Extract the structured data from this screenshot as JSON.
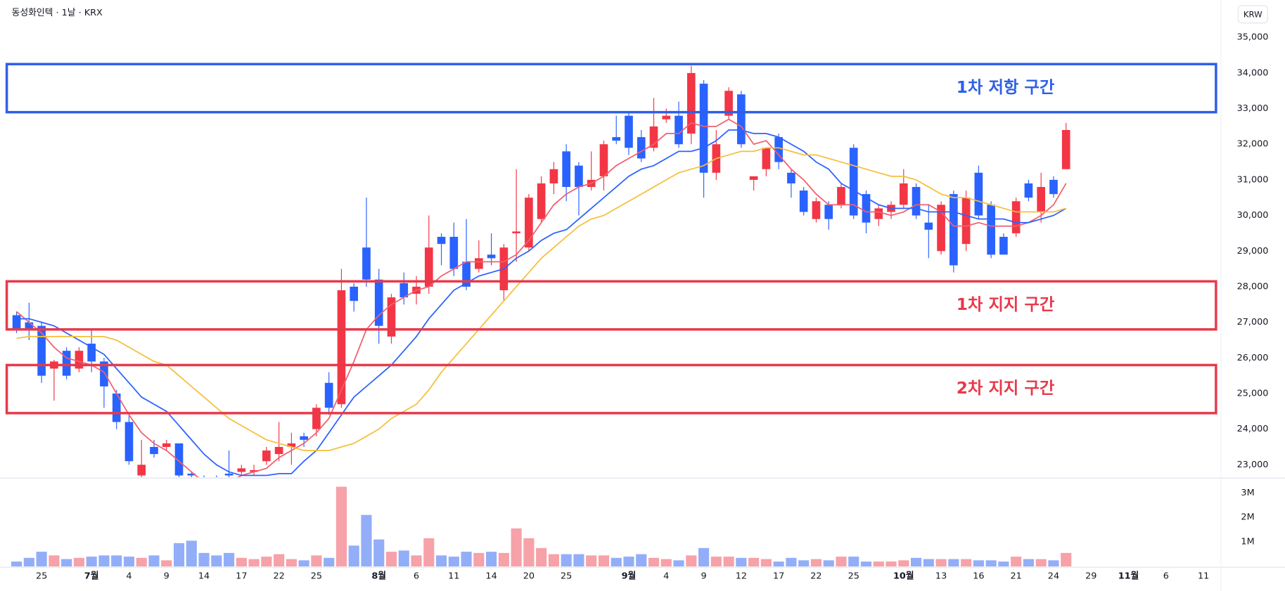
{
  "chart_data": [
    {
      "type": "candlestick",
      "title": "동성화인텍 · 1날 · KRX",
      "currency": "KRW",
      "categories": [
        null,
        null,
        "25",
        null,
        null,
        null,
        "7월",
        null,
        null,
        "4",
        null,
        null,
        "9",
        null,
        null,
        "14",
        null,
        null,
        "17",
        null,
        null,
        "22",
        null,
        null,
        "25",
        null,
        null,
        null,
        null,
        "8월",
        null,
        null,
        "6",
        null,
        null,
        "11",
        null,
        null,
        "14",
        null,
        null,
        "20",
        null,
        null,
        "25",
        null,
        null,
        null,
        null,
        "9월",
        null,
        null,
        "4",
        null,
        null,
        "9",
        null,
        null,
        "12",
        null,
        null,
        "17",
        null,
        null,
        "22",
        null,
        null,
        "25",
        null,
        null,
        null,
        "10월",
        null,
        null,
        "13",
        null,
        null,
        "16",
        null,
        null,
        "21",
        null,
        null,
        "24",
        null,
        null,
        "29",
        null,
        null,
        "11월",
        null,
        null,
        "6",
        null,
        null,
        "11",
        null
      ],
      "bold_categories": [
        "7월",
        "8월",
        "9월",
        "10월",
        "11월"
      ],
      "open": [
        27200,
        27000,
        26900,
        25700,
        26200,
        25700,
        26400,
        25900,
        25000,
        24200,
        22700,
        23500,
        23500,
        23600,
        22750,
        22600,
        22600,
        22750,
        22800,
        22800,
        23100,
        23300,
        23500,
        23800,
        24000,
        25300,
        24700,
        28000,
        29100,
        28200,
        26600,
        28100,
        27800,
        28000,
        29400,
        29400,
        28700,
        28500,
        28900,
        27900,
        29500,
        29100,
        29900,
        30900,
        31800,
        31400,
        30800,
        31100,
        32200,
        32800,
        32200,
        31900,
        32700,
        32800,
        32300,
        33700,
        31200,
        32800,
        33400,
        31000,
        31300,
        32200,
        31200,
        30700,
        29900,
        30300,
        30300,
        31900,
        30600,
        29900,
        30100,
        30300,
        30800,
        29800,
        29000,
        30600,
        29200,
        31200,
        30300,
        29400,
        29500,
        30900,
        30100,
        31000,
        31300,
        null,
        null,
        null,
        null,
        null,
        null,
        null,
        null,
        null,
        null,
        null,
        null
      ],
      "high": [
        27300,
        27550,
        27000,
        25950,
        26300,
        26300,
        26800,
        26000,
        25100,
        24400,
        23700,
        23700,
        23700,
        23600,
        22800,
        22700,
        22700,
        23400,
        23000,
        23000,
        23500,
        24200,
        23900,
        23900,
        24700,
        25600,
        28500,
        28100,
        30500,
        28500,
        27800,
        28400,
        28300,
        30000,
        29500,
        29800,
        29900,
        29300,
        29500,
        29200,
        31300,
        30600,
        31100,
        31500,
        32000,
        31500,
        31800,
        32100,
        32800,
        32900,
        32400,
        33300,
        33000,
        33200,
        34200,
        33800,
        32400,
        33600,
        33500,
        31100,
        31900,
        32300,
        31300,
        30800,
        30500,
        30400,
        30900,
        32000,
        30700,
        30300,
        30400,
        31300,
        30900,
        30300,
        30400,
        30700,
        30700,
        31400,
        30400,
        29500,
        30500,
        31000,
        31200,
        31100,
        32600,
        null,
        null,
        null,
        null,
        null,
        null,
        null,
        null,
        null,
        null,
        null,
        null
      ],
      "low": [
        26700,
        26500,
        25300,
        24800,
        25400,
        25600,
        25600,
        24600,
        24000,
        23000,
        22650,
        23200,
        23400,
        22650,
        22650,
        22300,
        22300,
        22600,
        22700,
        22700,
        23000,
        23100,
        23000,
        23500,
        23800,
        24400,
        24600,
        27300,
        28000,
        26400,
        26400,
        27500,
        27500,
        27800,
        28600,
        28300,
        27900,
        28400,
        28600,
        27600,
        28700,
        29000,
        29800,
        30600,
        30400,
        30000,
        30700,
        30700,
        32000,
        31700,
        31500,
        31800,
        32600,
        31900,
        32000,
        30500,
        31000,
        32700,
        31900,
        30700,
        31100,
        31300,
        30500,
        30000,
        29800,
        29600,
        30200,
        29900,
        29500,
        29700,
        29900,
        30200,
        29900,
        28800,
        28900,
        28400,
        29000,
        29900,
        28800,
        28900,
        29400,
        30400,
        29800,
        30500,
        31300,
        null,
        null,
        null,
        null,
        null,
        null,
        null,
        null,
        null,
        null,
        null,
        null
      ],
      "close": [
        26800,
        26800,
        25500,
        25900,
        25500,
        26200,
        25900,
        25200,
        24200,
        23100,
        23000,
        23300,
        23600,
        22700,
        22700,
        22400,
        22500,
        22700,
        22900,
        22850,
        23400,
        23500,
        23600,
        23700,
        24600,
        24600,
        27900,
        27600,
        28200,
        26900,
        27700,
        27700,
        28000,
        29100,
        29200,
        28500,
        28000,
        28800,
        28800,
        29100,
        29550,
        30500,
        30900,
        31300,
        30800,
        30800,
        31000,
        32000,
        32100,
        31900,
        31600,
        32500,
        32800,
        32000,
        34000,
        31200,
        32000,
        33500,
        32000,
        31100,
        31900,
        31500,
        30900,
        30100,
        30400,
        29900,
        30800,
        30000,
        29800,
        30200,
        30300,
        30900,
        30000,
        29600,
        30300,
        28600,
        30500,
        30000,
        28900,
        28900,
        30400,
        30500,
        30800,
        30600,
        32400,
        null,
        null,
        null,
        null,
        null,
        null,
        null,
        null,
        null,
        null,
        null,
        null
      ],
      "up_color": "#f23645",
      "down_color": "#2962ff",
      "lines": [
        {
          "color": "#f0606e",
          "values": [
            27300,
            27000,
            26700,
            26300,
            26000,
            25900,
            25800,
            25600,
            25000,
            24400,
            23900,
            23600,
            23400,
            23100,
            22800,
            22500,
            22400,
            22500,
            22700,
            22800,
            22900,
            23200,
            23400,
            23600,
            23900,
            24300,
            25100,
            25900,
            26800,
            27200,
            27500,
            27700,
            27900,
            28000,
            28300,
            28500,
            28700,
            28700,
            28700,
            28700,
            28900,
            29300,
            29800,
            30300,
            30600,
            30800,
            30900,
            31100,
            31400,
            31600,
            31800,
            32000,
            32300,
            32300,
            32600,
            32500,
            32500,
            32700,
            32500,
            32000,
            32100,
            31700,
            31300,
            31000,
            30600,
            30300,
            30300,
            30300,
            30100,
            30100,
            30000,
            30100,
            30300,
            30300,
            30100,
            29700,
            29700,
            29800,
            29700,
            29700,
            29700,
            29800,
            30000,
            30300,
            30900,
            null,
            null,
            null,
            null,
            null,
            null,
            null,
            null,
            null,
            null,
            null,
            null
          ]
        },
        {
          "color": "#2962ff",
          "values": [
            27100,
            27100,
            27000,
            26900,
            26700,
            26500,
            26300,
            26100,
            25700,
            25300,
            24900,
            24700,
            24500,
            24100,
            23700,
            23300,
            23000,
            22800,
            22700,
            22700,
            22700,
            22750,
            22750,
            23100,
            23400,
            23900,
            24400,
            24900,
            25200,
            25500,
            25800,
            26200,
            26600,
            27100,
            27500,
            27900,
            28100,
            28300,
            28400,
            28500,
            28800,
            29000,
            29300,
            29500,
            29600,
            29900,
            30200,
            30500,
            30800,
            31100,
            31300,
            31400,
            31600,
            31800,
            31800,
            31900,
            32100,
            32400,
            32400,
            32300,
            32300,
            32200,
            32000,
            31800,
            31500,
            31300,
            30900,
            30700,
            30500,
            30300,
            30200,
            30200,
            30200,
            30100,
            30100,
            30100,
            30000,
            29900,
            29900,
            29900,
            29800,
            29800,
            29900,
            30000,
            30200,
            null,
            null,
            null,
            null,
            null,
            null,
            null,
            null,
            null,
            null,
            null,
            null
          ]
        },
        {
          "color": "#f5bf3c",
          "values": [
            26550,
            26600,
            26600,
            26600,
            26600,
            26600,
            26600,
            26600,
            26500,
            26300,
            26100,
            25900,
            25800,
            25500,
            25200,
            24900,
            24600,
            24300,
            24100,
            23900,
            23700,
            23600,
            23500,
            23400,
            23400,
            23400,
            23500,
            23600,
            23800,
            24000,
            24300,
            24500,
            24700,
            25100,
            25600,
            26000,
            26400,
            26800,
            27200,
            27600,
            28000,
            28400,
            28800,
            29100,
            29400,
            29700,
            29900,
            30000,
            30200,
            30400,
            30600,
            30800,
            31000,
            31200,
            31300,
            31400,
            31600,
            31700,
            31800,
            31800,
            31900,
            31900,
            31800,
            31700,
            31700,
            31600,
            31500,
            31400,
            31300,
            31200,
            31100,
            31100,
            31000,
            30800,
            30600,
            30500,
            30500,
            30400,
            30300,
            30200,
            30100,
            30100,
            30100,
            30100,
            30200,
            null,
            null,
            null,
            null,
            null,
            null,
            null,
            null,
            null,
            null,
            null,
            null
          ]
        }
      ],
      "zones": [
        {
          "label": "1차 저항 구간",
          "top": 34250,
          "bottom": 32900,
          "color": "#2f5fe8"
        },
        {
          "label": "1차 지지 구간",
          "top": 28150,
          "bottom": 26800,
          "color": "#e8394b"
        },
        {
          "label": "2차 지지 구간",
          "top": 25800,
          "bottom": 24450,
          "color": "#e8394b"
        }
      ],
      "ylim": [
        22650,
        36050
      ],
      "yticks": [
        {
          "value": 23000,
          "label": "23,000"
        },
        {
          "value": 24000,
          "label": "24,000"
        },
        {
          "value": 25000,
          "label": "25,000"
        },
        {
          "value": 26000,
          "label": "26,000"
        },
        {
          "value": 27000,
          "label": "27,000"
        },
        {
          "value": 28000,
          "label": "28,000"
        },
        {
          "value": 29000,
          "label": "29,000"
        },
        {
          "value": 30000,
          "label": "30,000"
        },
        {
          "value": 31000,
          "label": "31,000"
        },
        {
          "value": 32000,
          "label": "32,000"
        },
        {
          "value": 33000,
          "label": "33,000"
        },
        {
          "value": 34000,
          "label": "34,000"
        },
        {
          "value": 35000,
          "label": "35,000"
        }
      ],
      "grid": false
    },
    {
      "type": "bar",
      "values": [
        200000,
        350000,
        600000,
        450000,
        300000,
        350000,
        400000,
        450000,
        450000,
        400000,
        350000,
        450000,
        250000,
        950000,
        1050000,
        550000,
        450000,
        550000,
        350000,
        300000,
        400000,
        500000,
        300000,
        250000,
        450000,
        350000,
        3250000,
        850000,
        2100000,
        1100000,
        600000,
        650000,
        450000,
        1150000,
        450000,
        400000,
        600000,
        550000,
        600000,
        550000,
        1550000,
        1150000,
        750000,
        500000,
        500000,
        500000,
        450000,
        450000,
        350000,
        400000,
        500000,
        350000,
        300000,
        250000,
        450000,
        750000,
        400000,
        400000,
        350000,
        350000,
        300000,
        200000,
        350000,
        250000,
        300000,
        250000,
        400000,
        400000,
        200000,
        200000,
        200000,
        250000,
        350000,
        300000,
        300000,
        300000,
        300000,
        250000,
        250000,
        200000,
        400000,
        300000,
        300000,
        250000,
        550000,
        null,
        null,
        null,
        null,
        null,
        null,
        null,
        null,
        null,
        null,
        null,
        null
      ],
      "up_color": "#f7a1a8",
      "down_color": "#93aef8",
      "ylim": [
        0,
        3570000
      ],
      "yticks": [
        {
          "value": 1000000,
          "label": "1M"
        },
        {
          "value": 2000000,
          "label": "2M"
        },
        {
          "value": 3000000,
          "label": "3M"
        }
      ],
      "grid": false
    }
  ]
}
